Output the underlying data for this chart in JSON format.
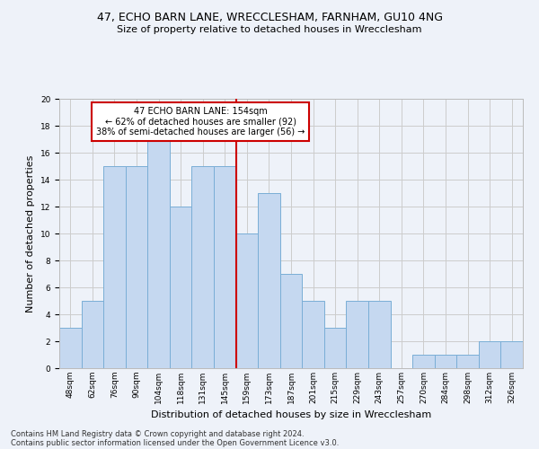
{
  "title": "47, ECHO BARN LANE, WRECCLESHAM, FARNHAM, GU10 4NG",
  "subtitle": "Size of property relative to detached houses in Wrecclesham",
  "xlabel": "Distribution of detached houses by size in Wrecclesham",
  "ylabel": "Number of detached properties",
  "categories": [
    "48sqm",
    "62sqm",
    "76sqm",
    "90sqm",
    "104sqm",
    "118sqm",
    "131sqm",
    "145sqm",
    "159sqm",
    "173sqm",
    "187sqm",
    "201sqm",
    "215sqm",
    "229sqm",
    "243sqm",
    "257sqm",
    "270sqm",
    "284sqm",
    "298sqm",
    "312sqm",
    "326sqm"
  ],
  "values": [
    3,
    5,
    15,
    15,
    17,
    12,
    15,
    15,
    10,
    13,
    7,
    5,
    3,
    5,
    5,
    0,
    1,
    1,
    1,
    2,
    2
  ],
  "bar_color": "#c5d8f0",
  "bar_edgecolor": "#7aaed6",
  "annotation_label": "47 ECHO BARN LANE: 154sqm",
  "annotation_line1": "← 62% of detached houses are smaller (92)",
  "annotation_line2": "38% of semi-detached houses are larger (56) →",
  "annotation_box_facecolor": "#ffffff",
  "annotation_box_edgecolor": "#cc0000",
  "vline_color": "#cc0000",
  "ylim": [
    0,
    20
  ],
  "yticks": [
    0,
    2,
    4,
    6,
    8,
    10,
    12,
    14,
    16,
    18,
    20
  ],
  "grid_color": "#cccccc",
  "bg_color": "#eef2f9",
  "title_fontsize": 9,
  "subtitle_fontsize": 8,
  "ylabel_fontsize": 8,
  "xlabel_fontsize": 8,
  "tick_fontsize": 6.5,
  "annot_fontsize": 7,
  "footer_fontsize": 6,
  "footer_line1": "Contains HM Land Registry data © Crown copyright and database right 2024.",
  "footer_line2": "Contains public sector information licensed under the Open Government Licence v3.0."
}
